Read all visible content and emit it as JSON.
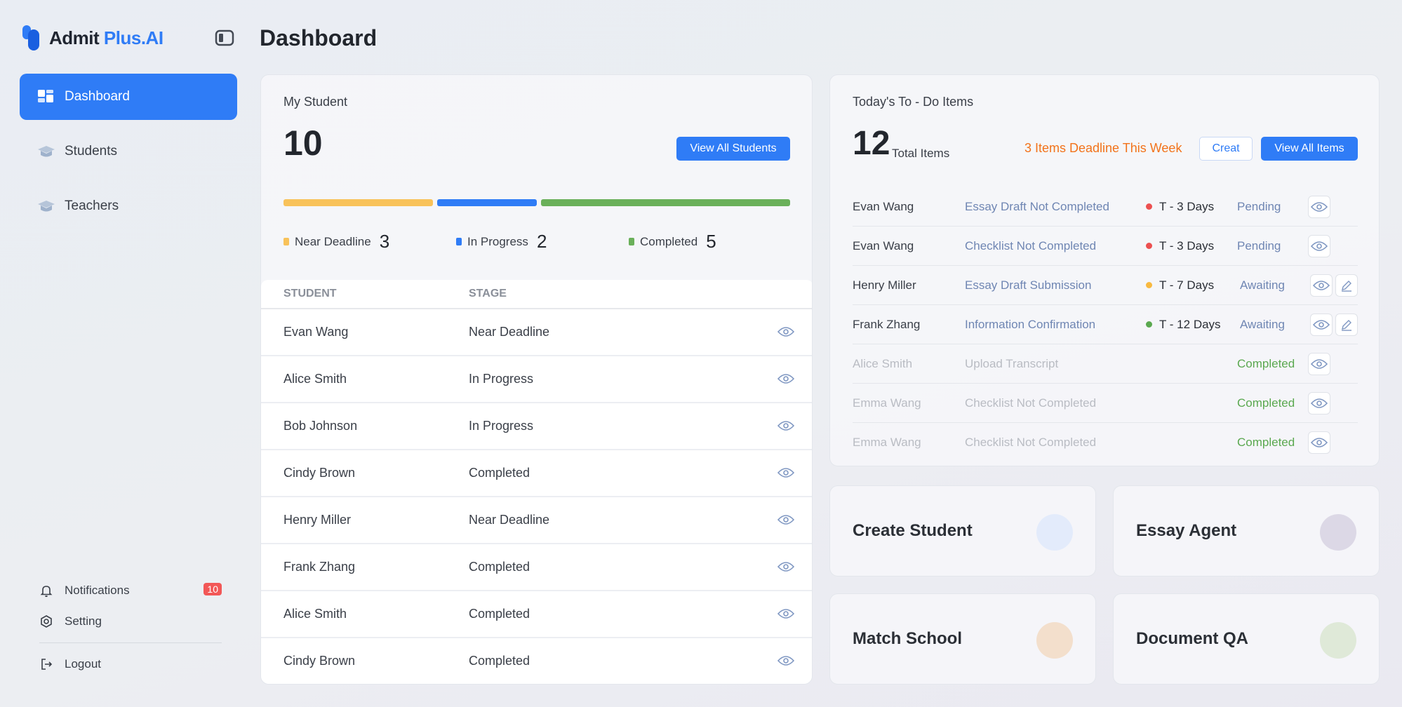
{
  "brand": {
    "name_prefix": "Admit",
    "name_suffix": "Plus.AI"
  },
  "sidebar": {
    "items": [
      {
        "label": "Dashboard",
        "icon": "dashboard-icon",
        "active": true
      },
      {
        "label": "Students",
        "icon": "graduation-cap-icon",
        "active": false
      },
      {
        "label": "Teachers",
        "icon": "graduation-cap-icon",
        "active": false
      }
    ],
    "bottom": {
      "notifications_label": "Notifications",
      "notifications_count": "10",
      "setting_label": "Setting",
      "logout_label": "Logout"
    }
  },
  "header": {
    "title": "Dashboard"
  },
  "students_card": {
    "label": "My Student",
    "count": "10",
    "view_all_label": "View All Students",
    "progress": {
      "near_deadline": 3,
      "in_progress": 2,
      "completed": 5
    },
    "legend": [
      {
        "label": "Near Deadline",
        "count": "3",
        "color": "#f8c25a"
      },
      {
        "label": "In Progress",
        "count": "2",
        "color": "#2f7cf6"
      },
      {
        "label": "Completed",
        "count": "5",
        "color": "#6ab05a"
      }
    ],
    "table": {
      "headers": {
        "student": "STUDENT",
        "stage": "STAGE"
      },
      "rows": [
        {
          "student": "Evan Wang",
          "stage": "Near Deadline"
        },
        {
          "student": "Alice Smith",
          "stage": "In Progress"
        },
        {
          "student": "Bob Johnson",
          "stage": "In Progress"
        },
        {
          "student": "Cindy Brown",
          "stage": "Completed"
        },
        {
          "student": "Henry Miller",
          "stage": "Near Deadline"
        },
        {
          "student": "Frank Zhang",
          "stage": "Completed"
        },
        {
          "student": "Alice Smith",
          "stage": "Completed"
        },
        {
          "student": "Cindy Brown",
          "stage": "Completed"
        }
      ]
    }
  },
  "todo_card": {
    "title": "Today's To - Do Items",
    "count": "12",
    "count_label": "Total Items",
    "deadline_text": "3 Items Deadline This Week",
    "create_label": "Creat",
    "view_all_label": "View All Items",
    "items": [
      {
        "name": "Evan Wang",
        "task": "Essay Draft Not Completed",
        "days": "T - 3 Days",
        "dot_color": "#ec5050",
        "status": "Pending",
        "editable": false,
        "done": false
      },
      {
        "name": "Evan Wang",
        "task": "Checklist Not Completed",
        "days": "T - 3 Days",
        "dot_color": "#ec5050",
        "status": "Pending",
        "editable": false,
        "done": false
      },
      {
        "name": "Henry Miller",
        "task": "Essay Draft Submission",
        "days": "T - 7 Days",
        "dot_color": "#f8b940",
        "status": "Awaiting",
        "editable": true,
        "done": false
      },
      {
        "name": "Frank Zhang",
        "task": "Information Confirmation",
        "days": "T - 12 Days",
        "dot_color": "#5aa84f",
        "status": "Awaiting",
        "editable": true,
        "done": false
      },
      {
        "name": "Alice Smith",
        "task": "Upload Transcript",
        "days": "",
        "dot_color": "",
        "status": "Completed",
        "editable": false,
        "done": true
      },
      {
        "name": "Emma Wang",
        "task": "Checklist Not Completed",
        "days": "",
        "dot_color": "",
        "status": "Completed",
        "editable": false,
        "done": true
      },
      {
        "name": "Emma Wang",
        "task": "Checklist Not Completed",
        "days": "",
        "dot_color": "",
        "status": "Completed",
        "editable": false,
        "done": true
      }
    ]
  },
  "actions": [
    {
      "label": "Create Student",
      "color": "#e3ebfb"
    },
    {
      "label": "Essay Agent",
      "color": "#dcd8e6"
    },
    {
      "label": "Match School",
      "color": "#f3dfcc"
    },
    {
      "label": "Document QA",
      "color": "#dfe9d8"
    }
  ]
}
